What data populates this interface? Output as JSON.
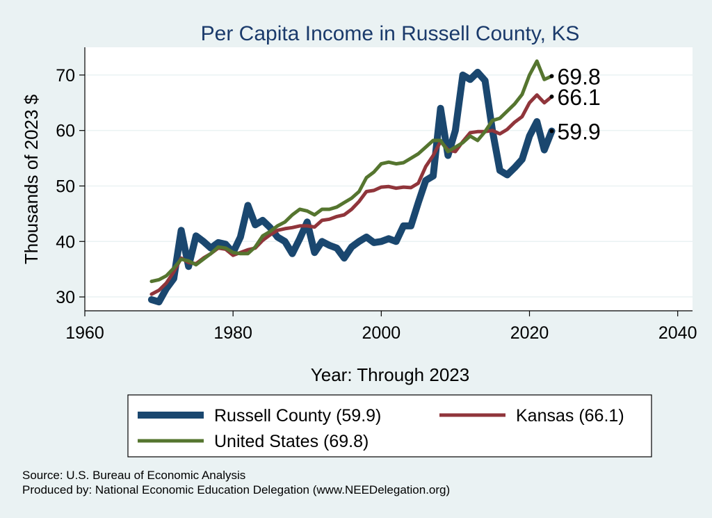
{
  "chart_data": {
    "type": "line",
    "title": "Per Capita Income in Russell County, KS",
    "xlabel": "Year: Through 2023",
    "ylabel": "Thousands of 2023 $",
    "xlim": [
      1960,
      2042
    ],
    "ylim": [
      27.5,
      75
    ],
    "xticks": [
      "1960",
      "1980",
      "2000",
      "2020",
      "2040"
    ],
    "yticks": [
      "30",
      "40",
      "50",
      "60",
      "70"
    ],
    "grid": true,
    "legend_position": "bottom",
    "series": [
      {
        "name": "Russell County",
        "legend": "Russell County (59.9)",
        "end_label": "59.9",
        "color": "#1a476f",
        "x": [
          1969,
          1970,
          1971,
          1972,
          1973,
          1974,
          1975,
          1976,
          1977,
          1978,
          1979,
          1980,
          1981,
          1982,
          1983,
          1984,
          1985,
          1986,
          1987,
          1988,
          1989,
          1990,
          1991,
          1992,
          1993,
          1994,
          1995,
          1996,
          1997,
          1998,
          1999,
          2000,
          2001,
          2002,
          2003,
          2004,
          2005,
          2006,
          2007,
          2008,
          2009,
          2010,
          2011,
          2012,
          2013,
          2014,
          2015,
          2016,
          2017,
          2018,
          2019,
          2020,
          2021,
          2022,
          2023
        ],
        "y": [
          29.5,
          29.1,
          31.5,
          33.3,
          42.0,
          35.5,
          41.0,
          40.0,
          38.8,
          39.8,
          39.5,
          38.0,
          40.8,
          46.5,
          43.0,
          43.8,
          42.5,
          40.8,
          40.0,
          37.8,
          40.5,
          43.5,
          38.0,
          40.0,
          39.3,
          38.8,
          37.0,
          39.0,
          40.0,
          40.8,
          39.8,
          40.0,
          40.5,
          40.0,
          42.8,
          42.8,
          47.0,
          51.0,
          51.8,
          64.0,
          55.5,
          60.0,
          70.0,
          69.2,
          70.5,
          69.0,
          60.0,
          52.8,
          52.0,
          53.3,
          54.8,
          59.0,
          61.6,
          56.5,
          59.9
        ]
      },
      {
        "name": "Kansas",
        "legend": "Kansas (66.1)",
        "end_label": "66.1",
        "color": "#90353b",
        "x": [
          1969,
          1970,
          1971,
          1972,
          1973,
          1974,
          1975,
          1976,
          1977,
          1978,
          1979,
          1980,
          1981,
          1982,
          1983,
          1984,
          1985,
          1986,
          1987,
          1988,
          1989,
          1990,
          1991,
          1992,
          1993,
          1994,
          1995,
          1996,
          1997,
          1998,
          1999,
          2000,
          2001,
          2002,
          2003,
          2004,
          2005,
          2006,
          2007,
          2008,
          2009,
          2010,
          2011,
          2012,
          2013,
          2014,
          2015,
          2016,
          2017,
          2018,
          2019,
          2020,
          2021,
          2022,
          2023
        ],
        "y": [
          30.5,
          31.2,
          32.5,
          34.5,
          37.0,
          36.2,
          36.0,
          37.0,
          37.8,
          38.8,
          38.6,
          37.5,
          38.0,
          38.5,
          38.8,
          40.2,
          41.2,
          42.0,
          42.3,
          42.5,
          42.8,
          42.8,
          42.6,
          43.8,
          44.0,
          44.5,
          44.8,
          45.8,
          47.2,
          49.0,
          49.2,
          49.8,
          49.9,
          49.6,
          49.8,
          49.7,
          50.5,
          53.5,
          55.5,
          58.0,
          56.5,
          56.2,
          58.0,
          59.6,
          59.8,
          59.8,
          60.0,
          59.4,
          60.2,
          61.5,
          62.5,
          65.0,
          66.4,
          65.0,
          66.1
        ]
      },
      {
        "name": "United States",
        "legend": "United States (69.8)",
        "end_label": "69.8",
        "color": "#55752f",
        "x": [
          1969,
          1970,
          1971,
          1972,
          1973,
          1974,
          1975,
          1976,
          1977,
          1978,
          1979,
          1980,
          1981,
          1982,
          1983,
          1984,
          1985,
          1986,
          1987,
          1988,
          1989,
          1990,
          1991,
          1992,
          1993,
          1994,
          1995,
          1996,
          1997,
          1998,
          1999,
          2000,
          2001,
          2002,
          2003,
          2004,
          2005,
          2006,
          2007,
          2008,
          2009,
          2010,
          2011,
          2012,
          2013,
          2014,
          2015,
          2016,
          2017,
          2018,
          2019,
          2020,
          2021,
          2022,
          2023
        ],
        "y": [
          32.8,
          33.1,
          33.8,
          35.2,
          36.8,
          36.5,
          35.8,
          36.8,
          37.8,
          39.0,
          38.8,
          38.0,
          37.8,
          37.8,
          39.0,
          41.0,
          41.8,
          42.8,
          43.5,
          44.8,
          45.8,
          45.5,
          44.8,
          45.8,
          45.8,
          46.2,
          47.0,
          47.8,
          49.0,
          51.5,
          52.5,
          54.0,
          54.3,
          54.0,
          54.2,
          55.0,
          55.8,
          57.0,
          58.2,
          58.2,
          56.2,
          57.0,
          57.8,
          59.0,
          58.2,
          59.8,
          61.8,
          62.2,
          63.5,
          64.8,
          66.5,
          70.0,
          72.5,
          69.2,
          69.8
        ]
      }
    ],
    "notes": [
      "Source: U.S. Bureau of Economic Analysis",
      "Produced by: National Economic Education Delegation (www.NEEDelegation.org)"
    ]
  }
}
